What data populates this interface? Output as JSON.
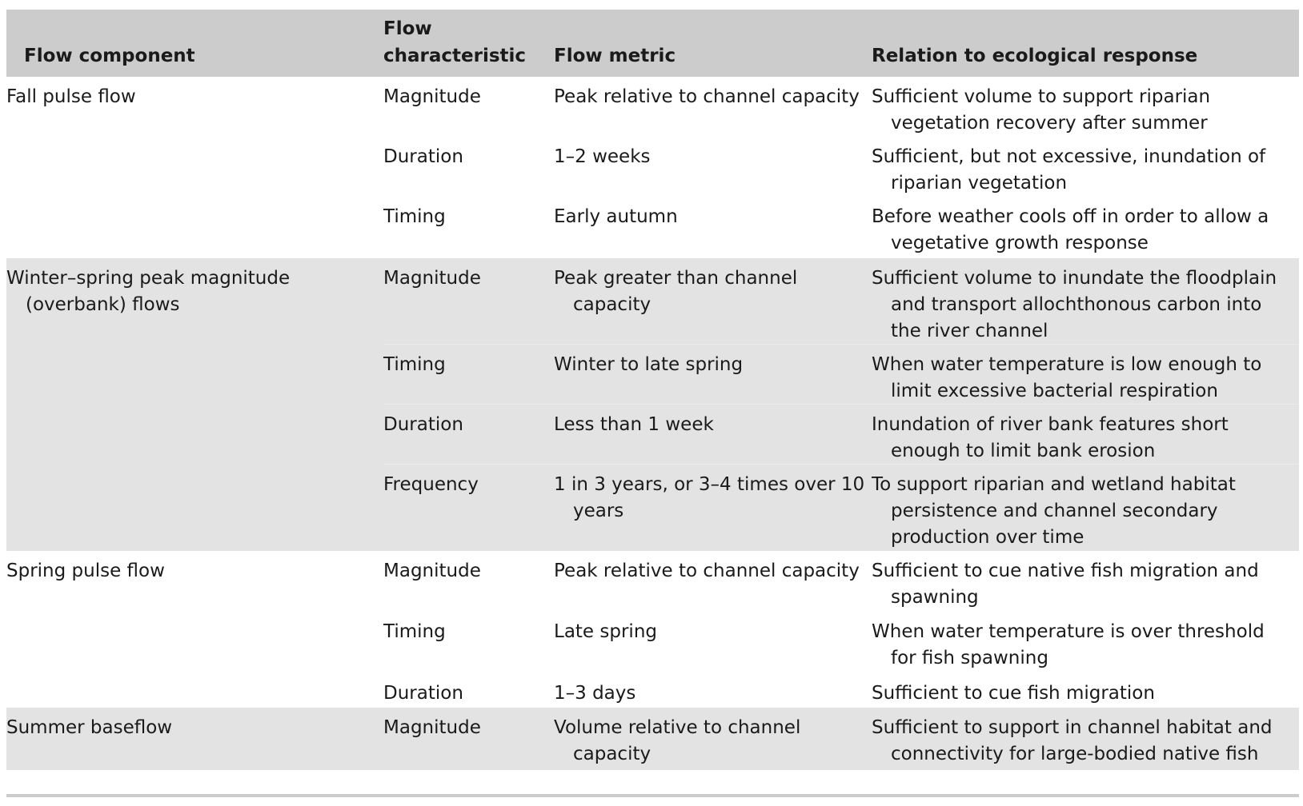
{
  "header": {
    "col1": "Flow component",
    "col2": "Flow characteristic",
    "col3": "Flow metric",
    "col4": "Relation to ecological response"
  },
  "groups": [
    {
      "component": "Fall pulse flow",
      "rows": [
        {
          "characteristic": "Magnitude",
          "metric": "Peak relative to channel capacity",
          "relation": "Sufficient volume to support riparian vegetation recovery after summer"
        },
        {
          "characteristic": "Duration",
          "metric": "1–2 weeks",
          "relation": "Sufficient, but not excessive, inundation of riparian vegetation"
        },
        {
          "characteristic": "Timing",
          "metric": "Early autumn",
          "relation": "Before weather cools off in order to allow a vegetative growth response"
        }
      ]
    },
    {
      "component": "Winter–spring peak magnitude (overbank) flows",
      "rows": [
        {
          "characteristic": "Magnitude",
          "metric": "Peak greater than channel capacity",
          "relation": "Sufficient volume to inundate the floodplain and transport allochthonous carbon into the river channel"
        },
        {
          "characteristic": "Timing",
          "metric": "Winter to late spring",
          "relation": "When water temperature is low enough to limit excessive bacterial respiration"
        },
        {
          "characteristic": "Duration",
          "metric": "Less than 1 week",
          "relation": "Inundation of river bank features short enough to limit bank erosion"
        },
        {
          "characteristic": "Frequency",
          "metric": "1 in 3 years, or 3–4 times over 10 years",
          "relation": "To support riparian and wetland habitat persistence and channel secondary production over time"
        }
      ]
    },
    {
      "component": "Spring pulse flow",
      "rows": [
        {
          "characteristic": "Magnitude",
          "metric": "Peak relative to channel capacity",
          "relation": "Sufficient to cue native fish migration and spawning"
        },
        {
          "characteristic": "Timing",
          "metric": "Late spring",
          "relation": "When water temperature is over threshold for fish spawning"
        },
        {
          "characteristic": "Duration",
          "metric": "1–3 days",
          "relation": "Sufficient to cue fish migration"
        }
      ]
    },
    {
      "component": "Summer baseflow",
      "rows": [
        {
          "characteristic": "Magnitude",
          "metric": "Volume relative to channel capacity",
          "relation": "Sufficient to support in channel habitat and connectivity for large-bodied native fish"
        }
      ]
    }
  ]
}
